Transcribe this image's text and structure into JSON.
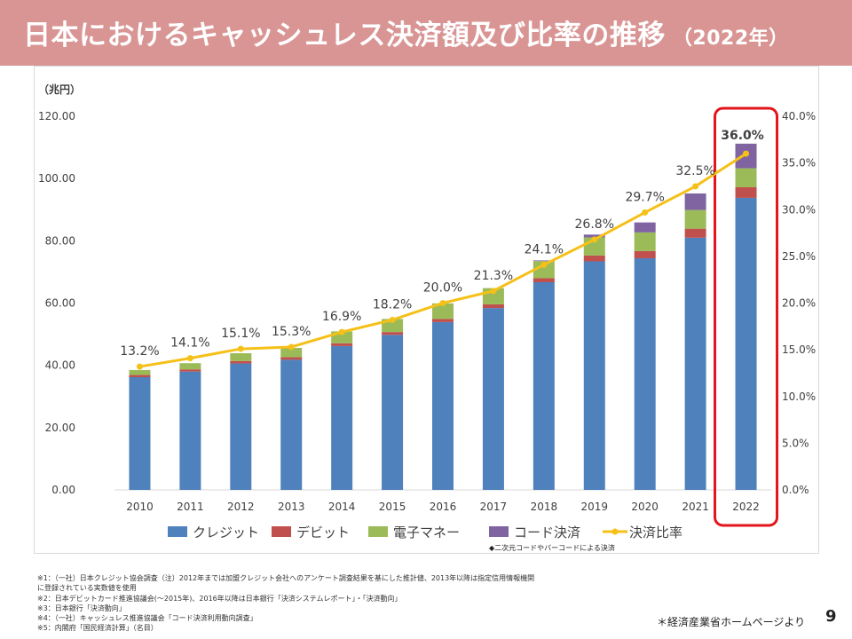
{
  "header": {
    "title": "日本におけるキャッシュレス決済額及び比率の推移",
    "year": "（2022年）"
  },
  "colors": {
    "header_bg": "#d99594",
    "credit": "#4f81bd",
    "debit": "#c0504d",
    "emoney": "#9bbb59",
    "code": "#8064a2",
    "ratio": "#f5c018",
    "highlight": "#e3141c",
    "highlight_label": "#e3141c"
  },
  "chart_data": {
    "type": "bar",
    "stacked": true,
    "title": "日本におけるキャッシュレス決済額及び比率の推移",
    "unit_label": "（兆円）",
    "categories": [
      "2010",
      "2011",
      "2012",
      "2013",
      "2014",
      "2015",
      "2016",
      "2017",
      "2018",
      "2019",
      "2020",
      "2021",
      "2022"
    ],
    "series": [
      {
        "key": "credit",
        "name": "クレジット",
        "values": [
          36.2,
          38.0,
          40.6,
          41.8,
          46.2,
          49.8,
          53.9,
          58.4,
          66.7,
          73.4,
          74.4,
          81.0,
          93.8
        ]
      },
      {
        "key": "debit",
        "name": "デビット",
        "values": [
          0.7,
          0.7,
          0.8,
          0.8,
          0.9,
          0.9,
          1.0,
          1.2,
          1.3,
          1.9,
          2.3,
          2.9,
          3.4
        ]
      },
      {
        "key": "emoney",
        "name": "電子マネー",
        "values": [
          1.6,
          2.0,
          2.5,
          3.0,
          3.8,
          4.2,
          5.0,
          5.2,
          5.5,
          5.8,
          6.0,
          6.0,
          6.1
        ]
      },
      {
        "key": "code",
        "name": "コード決済",
        "values": [
          0,
          0,
          0,
          0,
          0,
          0,
          0,
          0,
          0.2,
          0.9,
          3.2,
          5.3,
          7.9
        ]
      }
    ],
    "line_series": {
      "key": "ratio",
      "name": "決済比率",
      "axis": "right",
      "values": [
        13.2,
        14.1,
        15.1,
        15.3,
        16.9,
        18.2,
        20.0,
        21.3,
        24.1,
        26.8,
        29.7,
        32.5,
        36.0
      ],
      "labels": [
        "13.2%",
        "14.1%",
        "15.1%",
        "15.3%",
        "16.9%",
        "18.2%",
        "20.0%",
        "21.3%",
        "24.1%",
        "26.8%",
        "29.7%",
        "32.5%",
        "36.0%"
      ]
    },
    "y_left": {
      "min": 0,
      "max": 120,
      "ticks": [
        "0.00",
        "20.00",
        "40.00",
        "60.00",
        "80.00",
        "100.00",
        "120.00"
      ]
    },
    "y_right": {
      "min": 0,
      "max": 40,
      "ticks": [
        "0.0%",
        "5.0%",
        "10.0%",
        "15.0%",
        "20.0%",
        "25.0%",
        "30.0%",
        "35.0%",
        "40.0%"
      ]
    },
    "highlight_category": "2022",
    "legend_position": "bottom",
    "legend_note": "◆二次元コードやバーコードによる決済"
  },
  "notes": [
    "※1：（一社）日本クレジット協会調査（注）2012年までは加盟クレジット会社へのアンケート調査結果を基にした推計値、2013年以降は指定信用情報機関",
    "に登録されている実数値を使用",
    "※2：日本デビットカード推進協議会(～2015年)、2016年以降は日本銀行「決済システムレポート」・「決済動向」",
    "※3：日本銀行「決済動向」",
    "※4：（一社）キャッシュレス推進協議会「コード決済利用動向調査」",
    "※5：内閣府「国民経済計算」（名目）"
  ],
  "footer": {
    "source": "＊経済産業省ホームページより",
    "page": "9"
  }
}
